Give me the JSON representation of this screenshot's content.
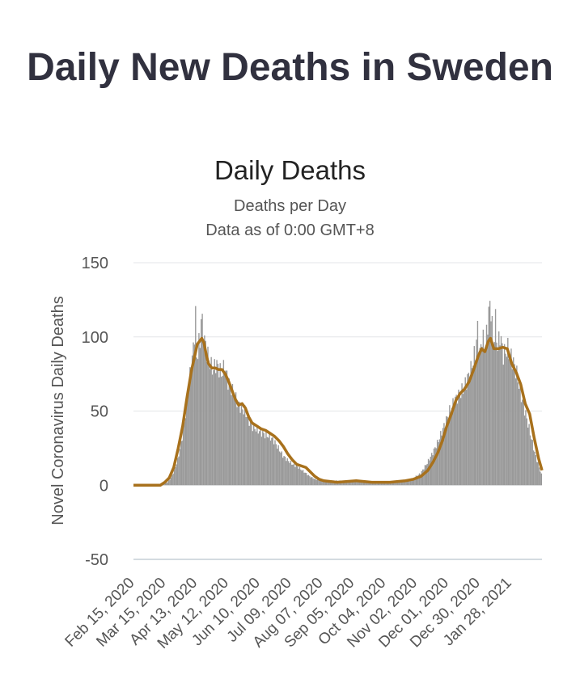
{
  "page_title": "Daily New Deaths in Sweden",
  "chart_data": {
    "type": "bar",
    "title": "Daily Deaths",
    "subtitle": "Deaths per Day",
    "subtitle2": "Data as of 0:00 GMT+8",
    "ylabel": "Novel Coronavirus Daily Deaths",
    "xlabel": "",
    "ylim": [
      -50,
      150
    ],
    "yticks": [
      150,
      100,
      50,
      0,
      -50
    ],
    "x_start": "2020-02-15",
    "x_end": "2021-02-14",
    "xtick_labels": [
      "Feb 15, 2020",
      "Mar 15, 2020",
      "Apr 13, 2020",
      "May 12, 2020",
      "Jun 10, 2020",
      "Jul 09, 2020",
      "Aug 07, 2020",
      "Sep 05, 2020",
      "Oct 04, 2020",
      "Nov 02, 2020",
      "Dec 01, 2020",
      "Dec 30, 2020",
      "Jan 28, 2021"
    ],
    "grid": true,
    "bar_color": "#999999",
    "line_color": "#a8711c",
    "series": [
      {
        "type": "bar",
        "points": [
          [
            "2020-02-15",
            0
          ],
          [
            "2020-03-10",
            0
          ],
          [
            "2020-03-13",
            1
          ],
          [
            "2020-03-16",
            2
          ],
          [
            "2020-03-19",
            5
          ],
          [
            "2020-03-22",
            10
          ],
          [
            "2020-03-25",
            17
          ],
          [
            "2020-03-28",
            28
          ],
          [
            "2020-03-31",
            42
          ],
          [
            "2020-04-02",
            55
          ],
          [
            "2020-04-04",
            68
          ],
          [
            "2020-04-06",
            80
          ],
          [
            "2020-04-08",
            92
          ],
          [
            "2020-04-10",
            114
          ],
          [
            "2020-04-11",
            86
          ],
          [
            "2020-04-13",
            95
          ],
          [
            "2020-04-14",
            97
          ],
          [
            "2020-04-15",
            114
          ],
          [
            "2020-04-16",
            108
          ],
          [
            "2020-04-18",
            98
          ],
          [
            "2020-04-20",
            90
          ],
          [
            "2020-04-22",
            85
          ],
          [
            "2020-04-24",
            80
          ],
          [
            "2020-04-26",
            78
          ],
          [
            "2020-04-28",
            82
          ],
          [
            "2020-04-30",
            80
          ],
          [
            "2020-05-03",
            75
          ],
          [
            "2020-05-06",
            80
          ],
          [
            "2020-05-09",
            70
          ],
          [
            "2020-05-12",
            65
          ],
          [
            "2020-05-15",
            60
          ],
          [
            "2020-05-18",
            55
          ],
          [
            "2020-05-21",
            52
          ],
          [
            "2020-05-24",
            50
          ],
          [
            "2020-05-27",
            45
          ],
          [
            "2020-05-30",
            40
          ],
          [
            "2020-06-03",
            38
          ],
          [
            "2020-06-07",
            36
          ],
          [
            "2020-06-11",
            34
          ],
          [
            "2020-06-15",
            33
          ],
          [
            "2020-06-19",
            30
          ],
          [
            "2020-06-23",
            25
          ],
          [
            "2020-06-27",
            20
          ],
          [
            "2020-07-01",
            17
          ],
          [
            "2020-07-06",
            14
          ],
          [
            "2020-07-11",
            12
          ],
          [
            "2020-07-16",
            9
          ],
          [
            "2020-07-21",
            6
          ],
          [
            "2020-07-26",
            4
          ],
          [
            "2020-08-01",
            3
          ],
          [
            "2020-08-10",
            3
          ],
          [
            "2020-08-25",
            3
          ],
          [
            "2020-09-10",
            2
          ],
          [
            "2020-09-25",
            2
          ],
          [
            "2020-10-10",
            3
          ],
          [
            "2020-10-20",
            4
          ],
          [
            "2020-10-28",
            8
          ],
          [
            "2020-11-03",
            15
          ],
          [
            "2020-11-08",
            22
          ],
          [
            "2020-11-13",
            30
          ],
          [
            "2020-11-18",
            40
          ],
          [
            "2020-11-23",
            50
          ],
          [
            "2020-11-28",
            58
          ],
          [
            "2020-12-03",
            62
          ],
          [
            "2020-12-08",
            70
          ],
          [
            "2020-12-12",
            78
          ],
          [
            "2020-12-16",
            90
          ],
          [
            "2020-12-18",
            105
          ],
          [
            "2020-12-20",
            88
          ],
          [
            "2020-12-22",
            100
          ],
          [
            "2020-12-25",
            92
          ],
          [
            "2020-12-28",
            118
          ],
          [
            "2020-12-30",
            120
          ],
          [
            "2021-01-01",
            95
          ],
          [
            "2021-01-03",
            110
          ],
          [
            "2021-01-05",
            92
          ],
          [
            "2021-01-07",
            102
          ],
          [
            "2021-01-10",
            88
          ],
          [
            "2021-01-14",
            92
          ],
          [
            "2021-01-18",
            85
          ],
          [
            "2021-01-22",
            75
          ],
          [
            "2021-01-26",
            60
          ],
          [
            "2021-01-30",
            48
          ],
          [
            "2021-02-03",
            35
          ],
          [
            "2021-02-07",
            22
          ],
          [
            "2021-02-11",
            12
          ],
          [
            "2021-02-14",
            5
          ]
        ]
      },
      {
        "type": "line",
        "points": [
          [
            "2020-02-15",
            0
          ],
          [
            "2020-03-10",
            0
          ],
          [
            "2020-03-14",
            2
          ],
          [
            "2020-03-18",
            5
          ],
          [
            "2020-03-22",
            12
          ],
          [
            "2020-03-26",
            25
          ],
          [
            "2020-03-30",
            40
          ],
          [
            "2020-04-03",
            60
          ],
          [
            "2020-04-07",
            78
          ],
          [
            "2020-04-10",
            88
          ],
          [
            "2020-04-12",
            95
          ],
          [
            "2020-04-14",
            97
          ],
          [
            "2020-04-16",
            99
          ],
          [
            "2020-04-18",
            96
          ],
          [
            "2020-04-20",
            88
          ],
          [
            "2020-04-22",
            82
          ],
          [
            "2020-04-25",
            79
          ],
          [
            "2020-04-28",
            79
          ],
          [
            "2020-05-01",
            78
          ],
          [
            "2020-05-04",
            78
          ],
          [
            "2020-05-07",
            75
          ],
          [
            "2020-05-10",
            70
          ],
          [
            "2020-05-13",
            64
          ],
          [
            "2020-05-16",
            58
          ],
          [
            "2020-05-19",
            54
          ],
          [
            "2020-05-22",
            55
          ],
          [
            "2020-05-25",
            52
          ],
          [
            "2020-05-28",
            46
          ],
          [
            "2020-05-31",
            42
          ],
          [
            "2020-06-04",
            40
          ],
          [
            "2020-06-08",
            38
          ],
          [
            "2020-06-12",
            37
          ],
          [
            "2020-06-16",
            35
          ],
          [
            "2020-06-20",
            33
          ],
          [
            "2020-06-24",
            30
          ],
          [
            "2020-06-28",
            26
          ],
          [
            "2020-07-02",
            21
          ],
          [
            "2020-07-06",
            17
          ],
          [
            "2020-07-10",
            14
          ],
          [
            "2020-07-14",
            13
          ],
          [
            "2020-07-18",
            12
          ],
          [
            "2020-07-22",
            9
          ],
          [
            "2020-07-26",
            6
          ],
          [
            "2020-07-30",
            4
          ],
          [
            "2020-08-03",
            3
          ],
          [
            "2020-08-15",
            2
          ],
          [
            "2020-09-01",
            3
          ],
          [
            "2020-09-15",
            2
          ],
          [
            "2020-10-01",
            2
          ],
          [
            "2020-10-15",
            3
          ],
          [
            "2020-10-22",
            4
          ],
          [
            "2020-10-29",
            6
          ],
          [
            "2020-11-04",
            10
          ],
          [
            "2020-11-09",
            16
          ],
          [
            "2020-11-13",
            22
          ],
          [
            "2020-11-17",
            30
          ],
          [
            "2020-11-21",
            40
          ],
          [
            "2020-11-25",
            48
          ],
          [
            "2020-11-29",
            57
          ],
          [
            "2020-12-03",
            62
          ],
          [
            "2020-12-07",
            65
          ],
          [
            "2020-12-11",
            70
          ],
          [
            "2020-12-15",
            78
          ],
          [
            "2020-12-19",
            87
          ],
          [
            "2020-12-22",
            92
          ],
          [
            "2020-12-25",
            90
          ],
          [
            "2020-12-28",
            97
          ],
          [
            "2020-12-30",
            99
          ],
          [
            "2021-01-02",
            92
          ],
          [
            "2021-01-06",
            92
          ],
          [
            "2021-01-10",
            93
          ],
          [
            "2021-01-14",
            92
          ],
          [
            "2021-01-18",
            82
          ],
          [
            "2021-01-22",
            76
          ],
          [
            "2021-01-26",
            68
          ],
          [
            "2021-01-30",
            55
          ],
          [
            "2021-02-03",
            48
          ],
          [
            "2021-02-07",
            32
          ],
          [
            "2021-02-11",
            18
          ],
          [
            "2021-02-14",
            10
          ]
        ]
      }
    ]
  }
}
